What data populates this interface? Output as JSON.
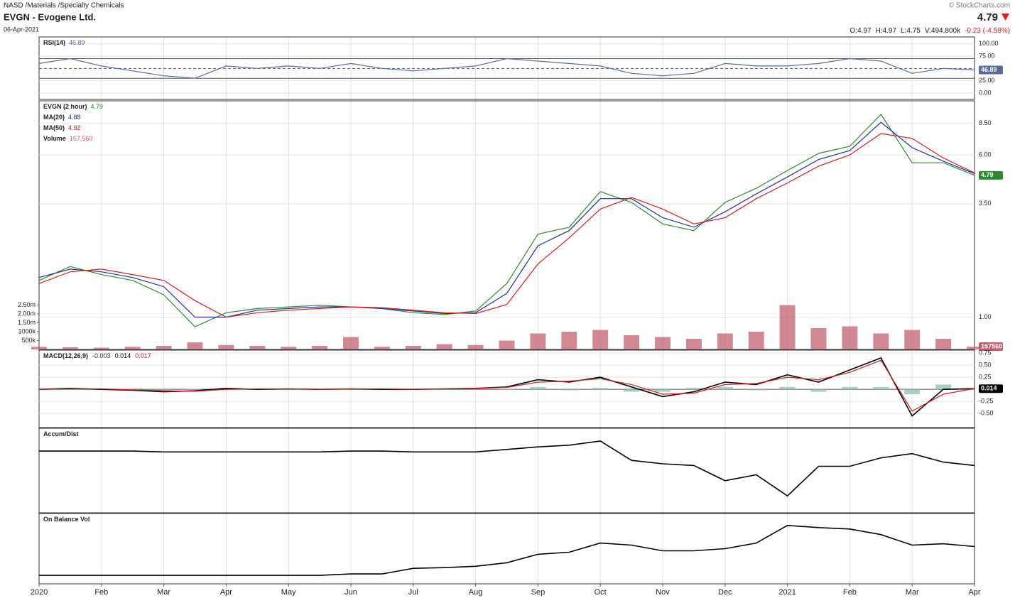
{
  "header": {
    "exchange_path": "NASD /Materials /Specialty Chemicals",
    "name": "EVGN - Evogene Ltd.",
    "date": "06-Apr-2021",
    "source": "© StockCharts.com",
    "last": "4.79",
    "change": "-0.23 (-4.58%)",
    "open_label": "O:",
    "open": "4.97",
    "high_label": "H:",
    "high": "4.97",
    "low_label": "L:",
    "low": "4.75",
    "volume_label": "V:",
    "volume": "494.800k"
  },
  "chart_data": [
    {
      "type": "line",
      "ylim": [
        -13,
        114
      ],
      "yticks": [
        {
          "value": 100,
          "label": "100.00"
        },
        {
          "value": 75,
          "label": "75.00"
        },
        {
          "value": 25,
          "label": "25.00"
        },
        {
          "value": 0,
          "label": "0.00"
        }
      ],
      "reference_lines": [
        30,
        50,
        70
      ],
      "series": [
        {
          "name": "RSI(14)",
          "color": "#5a6a9a",
          "legend": true,
          "tag": true,
          "values": [
            60,
            70,
            55,
            45,
            35,
            30,
            55,
            50,
            55,
            50,
            60,
            50,
            45,
            50,
            55,
            70,
            65,
            60,
            55,
            40,
            35,
            40,
            60,
            55,
            55,
            60,
            70,
            65,
            40,
            50,
            46.89
          ]
        }
      ]
    },
    {
      "type": "line",
      "log": true,
      "ylim": [
        0.7,
        10.9
      ],
      "yticks": [
        {
          "value": 1,
          "label": "1.00"
        },
        {
          "value": 3.5,
          "label": "3.50"
        },
        {
          "value": 6,
          "label": "6.00"
        },
        {
          "value": 8.5,
          "label": "8.50"
        }
      ],
      "y2lim": [
        0,
        14000000
      ],
      "y2ticks": [
        {
          "value": 500000,
          "label": "500k"
        },
        {
          "value": 1000000,
          "label": "1000k"
        },
        {
          "value": 1500000,
          "label": "1.50m"
        },
        {
          "value": 2000000,
          "label": "2.00m"
        },
        {
          "value": 2500000,
          "label": "2.50m"
        }
      ],
      "series": [
        {
          "name": "EVGN (2 hour)",
          "color": "#2f8a2f",
          "legend": true,
          "tag": true,
          "values": [
            1.5,
            1.75,
            1.6,
            1.5,
            1.28,
            0.9,
            1.05,
            1.1,
            1.12,
            1.14,
            1.12,
            1.1,
            1.05,
            1.03,
            1.07,
            1.45,
            2.5,
            2.7,
            4.0,
            3.55,
            2.8,
            2.6,
            3.55,
            4.15,
            5.05,
            6.1,
            6.6,
            9.4,
            5.5,
            5.5,
            4.79
          ]
        },
        {
          "name": "MA(20)",
          "color": "#1f2f9e",
          "legend": true,
          "values": [
            1.55,
            1.7,
            1.65,
            1.55,
            1.4,
            1.0,
            1.0,
            1.08,
            1.1,
            1.12,
            1.12,
            1.1,
            1.07,
            1.04,
            1.05,
            1.3,
            2.2,
            2.6,
            3.7,
            3.7,
            3.0,
            2.7,
            3.2,
            3.9,
            4.7,
            5.7,
            6.3,
            8.6,
            6.5,
            5.6,
            4.88
          ]
        },
        {
          "name": "MA(50)",
          "color": "#d62020",
          "legend": true,
          "values": [
            1.45,
            1.65,
            1.7,
            1.6,
            1.5,
            1.2,
            1.0,
            1.05,
            1.08,
            1.1,
            1.12,
            1.11,
            1.08,
            1.05,
            1.04,
            1.15,
            1.8,
            2.4,
            3.3,
            3.75,
            3.3,
            2.8,
            3.0,
            3.7,
            4.4,
            5.3,
            6.0,
            7.6,
            7.2,
            5.8,
            4.92
          ]
        },
        {
          "name": "Volume",
          "type": "bar",
          "axis": "y2",
          "color": "#c06070",
          "legend": true,
          "tag": true,
          "values": [
            150000,
            120000,
            100000,
            150000,
            200000,
            400000,
            250000,
            200000,
            150000,
            200000,
            700000,
            150000,
            200000,
            300000,
            250000,
            500000,
            900000,
            1000000,
            1100000,
            800000,
            700000,
            600000,
            900000,
            1000000,
            2500000,
            1200000,
            1300000,
            900000,
            1100000,
            600000,
            157560
          ],
          "value_labels": [
            null,
            null,
            null,
            null,
            null,
            null,
            null,
            null,
            null,
            null,
            null,
            null,
            null,
            null,
            null,
            null,
            null,
            null,
            null,
            null,
            null,
            null,
            null,
            null,
            null,
            null,
            null,
            null,
            null,
            null,
            "157,560"
          ]
        }
      ]
    },
    {
      "type": "line",
      "title": "MACD(12,26,9)",
      "ylim": [
        -0.79,
        0.81
      ],
      "yticks": [
        0.75,
        {
          "value": 0.5,
          "label": "0.50"
        },
        0.25,
        -0.25,
        {
          "value": -0.5,
          "label": "-0.50"
        }
      ],
      "reference_lines": [
        0
      ],
      "series": [
        {
          "type": "bar",
          "color": "#8fbfb0",
          "legend": true,
          "values": [
            0,
            0.01,
            -0.01,
            -0.01,
            -0.02,
            0.01,
            0.02,
            -0.01,
            0,
            0,
            0,
            -0.01,
            0,
            0,
            0,
            0.01,
            0.05,
            -0.02,
            0.03,
            -0.05,
            -0.05,
            0.03,
            0.05,
            -0.02,
            0.05,
            -0.05,
            0.05,
            0.05,
            -0.1,
            0.1,
            -0.003
          ]
        },
        {
          "color": "#000000",
          "legend": true,
          "tag": true,
          "values": [
            0,
            0.02,
            0,
            -0.02,
            -0.05,
            -0.03,
            0.02,
            0,
            0.01,
            0,
            0.01,
            0,
            0,
            0.01,
            0.02,
            0.05,
            0.2,
            0.15,
            0.25,
            0.05,
            -0.15,
            -0.05,
            0.15,
            0.1,
            0.3,
            0.15,
            0.4,
            0.65,
            -0.55,
            0.0,
            0.014
          ]
        },
        {
          "color": "#cc2222",
          "legend": true,
          "values": [
            0,
            0.01,
            0.01,
            -0.01,
            -0.03,
            -0.04,
            0,
            0.01,
            0.01,
            0,
            0.01,
            0.01,
            0,
            0.01,
            0.02,
            0.04,
            0.15,
            0.17,
            0.22,
            0.1,
            -0.1,
            -0.08,
            0.1,
            0.12,
            0.25,
            0.2,
            0.35,
            0.6,
            -0.45,
            -0.1,
            0.017
          ]
        }
      ]
    },
    {
      "type": "line",
      "title": "Accum/Dist",
      "ylim": [
        0,
        100
      ],
      "series": [
        {
          "color": "#000000",
          "values": [
            73,
            73,
            73,
            73,
            72,
            72,
            72,
            72,
            72,
            72,
            73,
            73,
            72,
            72,
            72,
            75,
            78,
            80,
            85,
            62,
            58,
            56,
            38,
            45,
            20,
            55,
            55,
            65,
            70,
            60,
            56
          ]
        }
      ]
    },
    {
      "type": "line",
      "title": "On Balance  Vol",
      "ylim": [
        0,
        100
      ],
      "categories": [
        "2020",
        null,
        "Feb",
        null,
        "Mar",
        null,
        "Apr",
        null,
        "May",
        null,
        "Jun",
        null,
        "Jul",
        null,
        "Aug",
        null,
        "Sep",
        null,
        "Oct",
        null,
        "Nov",
        null,
        "Dec",
        null,
        "2021",
        null,
        "Feb",
        null,
        "Mar",
        null,
        "Apr"
      ],
      "series": [
        {
          "color": "#000000",
          "values": [
            12,
            12,
            12,
            12,
            12,
            12,
            12,
            12,
            12,
            12,
            14,
            14,
            22,
            23,
            25,
            30,
            42,
            45,
            58,
            55,
            47,
            47,
            50,
            58,
            83,
            80,
            78,
            70,
            55,
            57,
            53
          ]
        }
      ]
    }
  ]
}
